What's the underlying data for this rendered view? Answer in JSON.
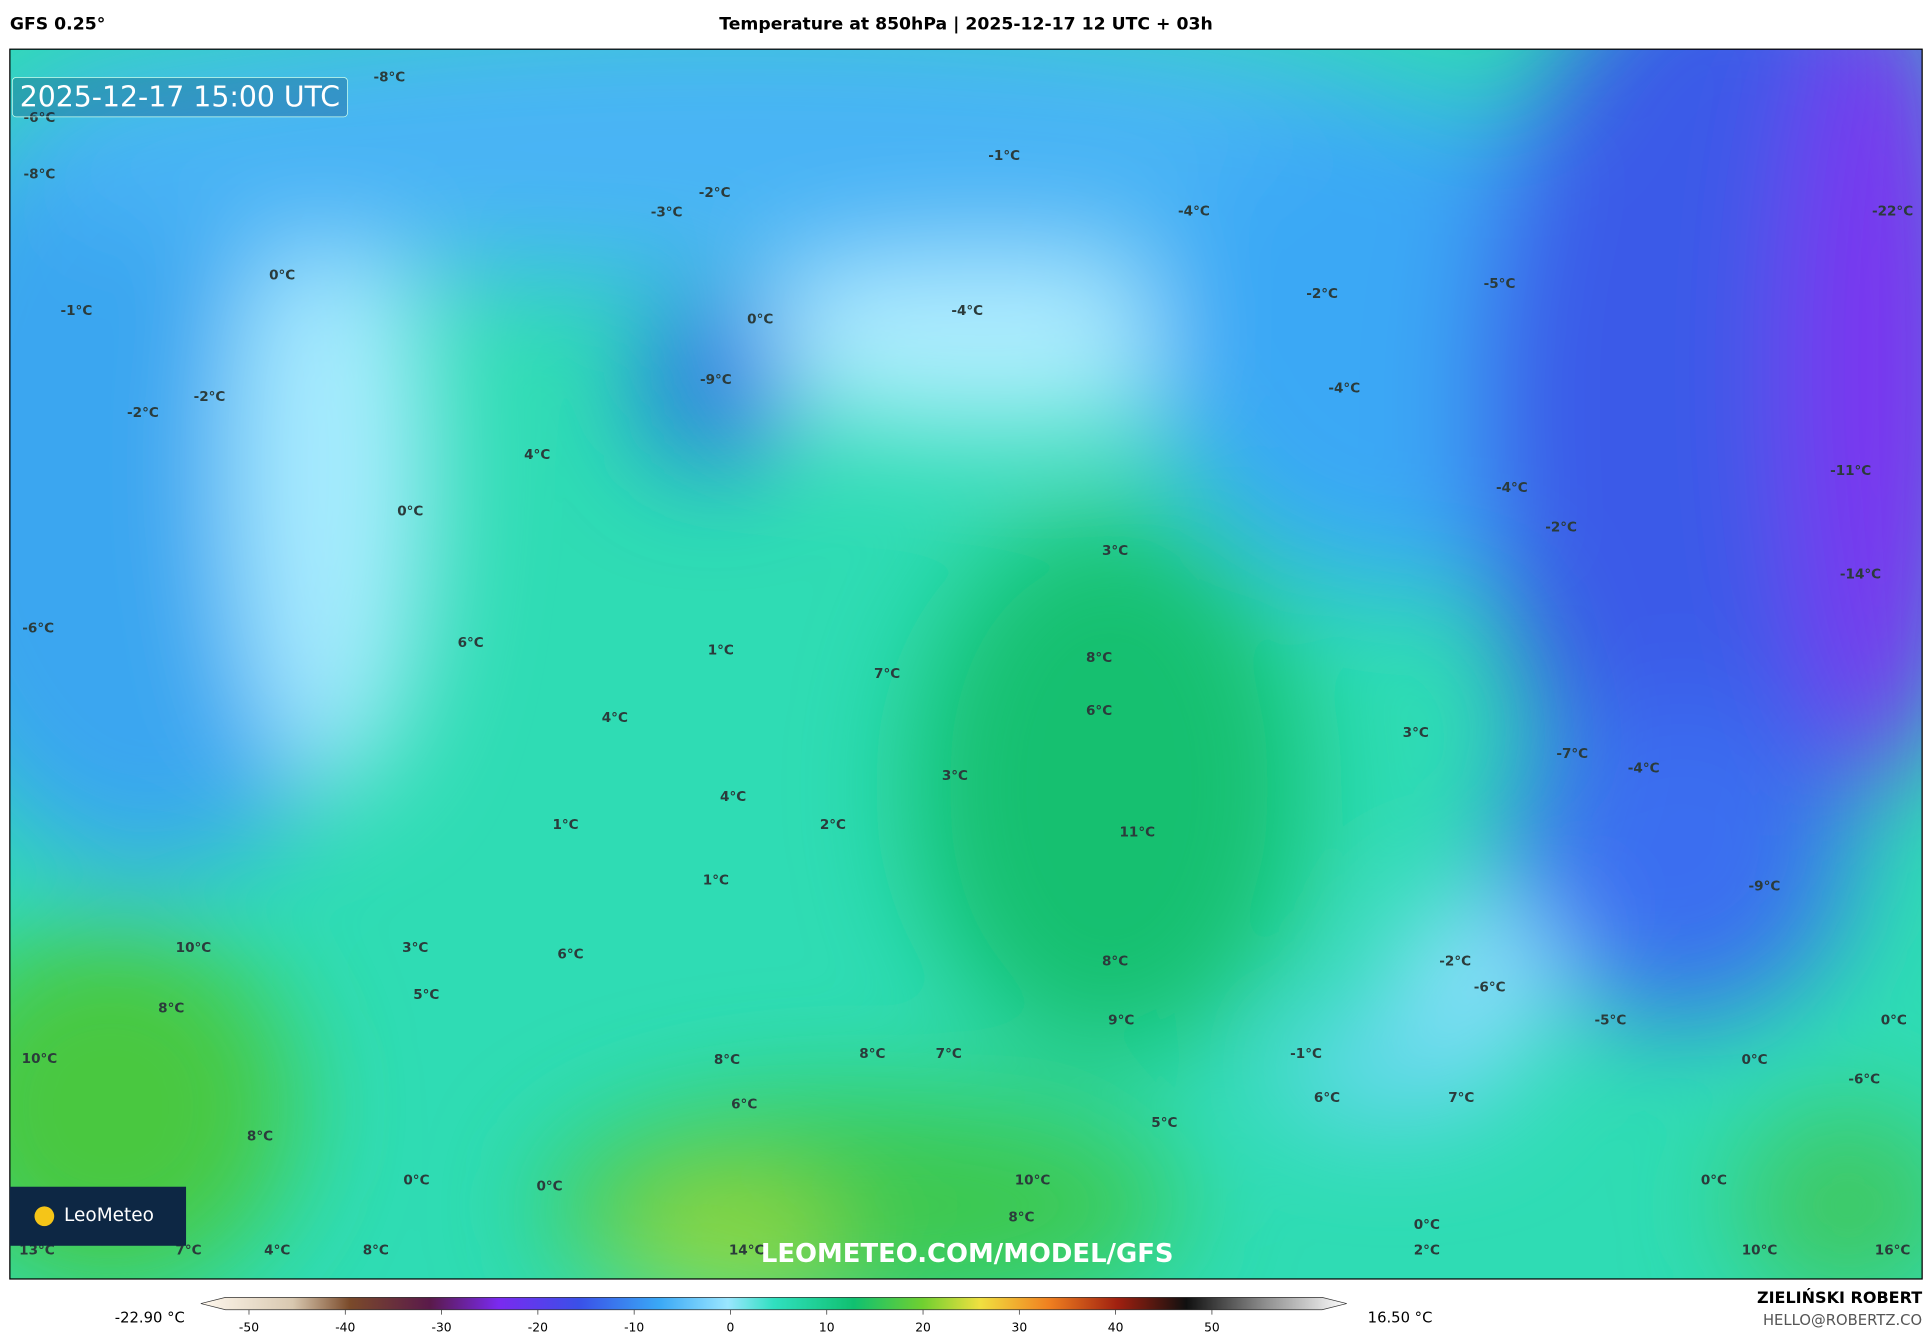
{
  "header": {
    "model": "GFS 0.25°",
    "title": "Temperature at 850hPa | 2025-12-17 12 UTC + 03h"
  },
  "map": {
    "timestamp": "2025-12-17 15:00 UTC",
    "watermark": "LEOMETEO.COM/MODEL/GFS",
    "logo": "LeoMeteo",
    "labels": [
      "-8°C",
      "-6°C",
      "-8°C",
      "-1°C",
      "-2°C",
      "-3°C",
      "-4°C",
      "-22°C",
      "0°C",
      "-1°C",
      "0°C",
      "-4°C",
      "-2°C",
      "-5°C",
      "-9°C",
      "-2°C",
      "-2°C",
      "-4°C",
      "4°C",
      "-11°C",
      "0°C",
      "-4°C",
      "-2°C",
      "3°C",
      "-14°C",
      "-6°C",
      "6°C",
      "1°C",
      "8°C",
      "7°C",
      "6°C",
      "4°C",
      "3°C",
      "-7°C",
      "-4°C",
      "3°C",
      "4°C",
      "2°C",
      "1°C",
      "11°C",
      "1°C",
      "-9°C",
      "10°C",
      "3°C",
      "6°C",
      "8°C",
      "-2°C",
      "-6°C",
      "5°C",
      "8°C",
      "-5°C",
      "9°C",
      "0°C",
      "10°C",
      "8°C",
      "8°C",
      "7°C",
      "-1°C",
      "0°C",
      "-6°C",
      "7°C",
      "6°C",
      "6°C",
      "5°C",
      "8°C",
      "0°C",
      "0°C",
      "10°C",
      "0°C",
      "0°C",
      "8°C",
      "13°C",
      "7°C",
      "4°C",
      "8°C",
      "14°C",
      "2°C",
      "10°C",
      "16°C"
    ]
  },
  "legend": {
    "min_label": "-22.90 °C",
    "max_label": "16.50 °C",
    "ticks": [
      -50,
      -40,
      -30,
      -20,
      -10,
      0,
      10,
      20,
      30,
      40,
      50
    ],
    "range": [
      -55,
      64
    ]
  },
  "footer": {
    "author": "ZIELIŃSKI ROBERT",
    "email": "HELLO@ROBERTZ.CO"
  }
}
